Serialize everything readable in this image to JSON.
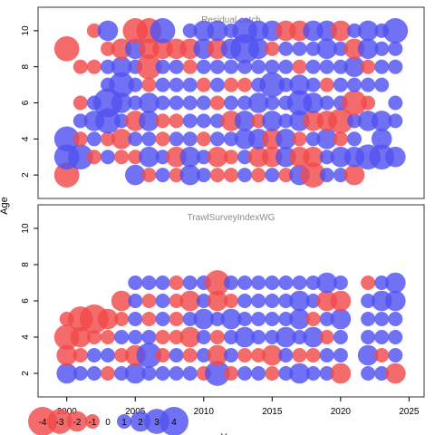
{
  "chart_data": {
    "type": "scatter",
    "ylabel": "Age",
    "xlabel": "Y",
    "xlim": [
      1997.9,
      2026.1
    ],
    "x_ticks": [
      2000,
      2005,
      2010,
      2015,
      2020,
      2025
    ],
    "y_ticks": [
      2,
      4,
      6,
      8,
      10
    ],
    "colors": {
      "positive": "#5252f0",
      "negative": "#f24a4a"
    },
    "legend": {
      "placement": "bottom-left",
      "values": [
        -4,
        -3,
        -2,
        -1,
        0,
        1,
        2,
        3,
        4
      ],
      "labels": [
        "-4",
        "-3",
        "-2",
        "-1",
        "0",
        "1",
        "2",
        "3",
        "4"
      ]
    },
    "panels": [
      {
        "title": "Residual catch",
        "ylim": [
          0.7,
          11.3
        ],
        "years": [
          1998,
          2000,
          2001,
          2002,
          2003,
          2004,
          2005,
          2006,
          2007,
          2008,
          2009,
          2010,
          2011,
          2012,
          2013,
          2014,
          2015,
          2016,
          2017,
          2018,
          2019,
          2020,
          2021,
          2022,
          2023,
          2024
        ],
        "ages": [
          2,
          3,
          4,
          5,
          6,
          7,
          8,
          9,
          10
        ],
        "residuals": [
          [
            0,
            -3,
            0,
            0,
            0,
            0,
            2,
            -1,
            1,
            -1,
            2,
            1,
            -1,
            -1,
            1,
            -1,
            1,
            -1,
            2,
            -3,
            1,
            1,
            -2,
            0,
            0,
            0
          ],
          [
            0,
            3,
            3,
            -1,
            1,
            -1,
            -1,
            2,
            1,
            -2,
            2,
            1,
            -2,
            -1,
            1,
            -2,
            -2,
            2,
            -2,
            -2,
            1,
            2,
            2,
            3,
            3,
            2
          ],
          [
            0,
            3,
            -1,
            1,
            -1,
            -2,
            1,
            1,
            -1,
            1,
            1,
            -1,
            1,
            1,
            2,
            2,
            -2,
            2,
            -1,
            1,
            2,
            -1,
            1,
            0,
            2,
            0
          ],
          [
            0,
            0,
            1,
            2,
            3,
            1,
            -2,
            2,
            -1,
            -1,
            1,
            1,
            1,
            -2,
            2,
            -1,
            2,
            1,
            2,
            -2,
            -2,
            -3,
            1,
            2,
            2,
            1
          ],
          [
            0,
            0,
            -1,
            1,
            4,
            2,
            1,
            2,
            1,
            1,
            1,
            1,
            -1,
            1,
            1,
            2,
            1,
            1,
            3,
            2,
            1,
            1,
            -3,
            -1,
            0,
            1
          ],
          [
            0,
            0,
            0,
            0,
            1,
            3,
            1,
            -1,
            1,
            1,
            1,
            -1,
            1,
            -1,
            -1,
            1,
            3,
            1,
            2,
            1,
            -1,
            1,
            1,
            1,
            1,
            0
          ],
          [
            0,
            0,
            -1,
            -1,
            1,
            2,
            1,
            -3,
            1,
            1,
            -1,
            1,
            1,
            1,
            1,
            1,
            1,
            1,
            -1,
            1,
            1,
            1,
            2,
            -1,
            1,
            1
          ],
          [
            0,
            -3,
            0,
            0,
            -1,
            -2,
            2,
            -2,
            -2,
            -2,
            -2,
            2,
            -2,
            2,
            4,
            2,
            -1,
            1,
            1,
            1,
            2,
            1,
            -2,
            2,
            1,
            1
          ],
          [
            0,
            0,
            0,
            -1,
            2,
            0,
            -3,
            -3,
            3,
            0,
            1,
            2,
            2,
            1,
            3,
            2,
            2,
            -2,
            -2,
            2,
            2,
            -2,
            1,
            2,
            1,
            3
          ]
        ]
      },
      {
        "title": "TrawlSurveyIndexWG",
        "ylim": [
          0.7,
          11.3
        ],
        "years": [
          1998,
          2000,
          2001,
          2002,
          2003,
          2004,
          2005,
          2006,
          2007,
          2008,
          2009,
          2010,
          2011,
          2012,
          2013,
          2014,
          2015,
          2016,
          2017,
          2018,
          2019,
          2020,
          2021,
          2022,
          2023,
          2024
        ],
        "ages": [
          2,
          3,
          4,
          5,
          6,
          7
        ],
        "residuals": [
          [
            0,
            2,
            1,
            1,
            -1,
            1,
            2,
            1,
            1,
            1,
            1,
            -1,
            3,
            -1,
            1,
            1,
            -1,
            1,
            2,
            1,
            1,
            -2,
            0,
            1,
            1,
            -2
          ],
          [
            0,
            -2,
            -1,
            1,
            1,
            -1,
            -2,
            3,
            -1,
            1,
            -1,
            1,
            -2,
            1,
            -1,
            -1,
            -2,
            1,
            -1,
            -1,
            1,
            1,
            0,
            2,
            -1,
            1
          ],
          [
            0,
            -3,
            -2,
            -1,
            -1,
            1,
            1,
            1,
            -1,
            -1,
            -2,
            1,
            -1,
            1,
            2,
            1,
            1,
            2,
            1,
            2,
            -1,
            1,
            0,
            1,
            1,
            1
          ],
          [
            0,
            -1,
            -3,
            -4,
            -2,
            -1,
            1,
            -1,
            1,
            -1,
            1,
            2,
            1,
            2,
            1,
            1,
            1,
            1,
            2,
            -1,
            1,
            2,
            0,
            1,
            1,
            1
          ],
          [
            0,
            0,
            0,
            0,
            0,
            -2,
            1,
            -1,
            1,
            -1,
            -2,
            1,
            -2,
            -1,
            1,
            1,
            1,
            1,
            2,
            1,
            -2,
            -2,
            0,
            1,
            2,
            2
          ],
          [
            0,
            0,
            0,
            0,
            0,
            0,
            1,
            1,
            1,
            -1,
            1,
            1,
            -3,
            1,
            1,
            1,
            1,
            1,
            1,
            1,
            2,
            1,
            0,
            -1,
            1,
            2
          ]
        ]
      }
    ]
  }
}
